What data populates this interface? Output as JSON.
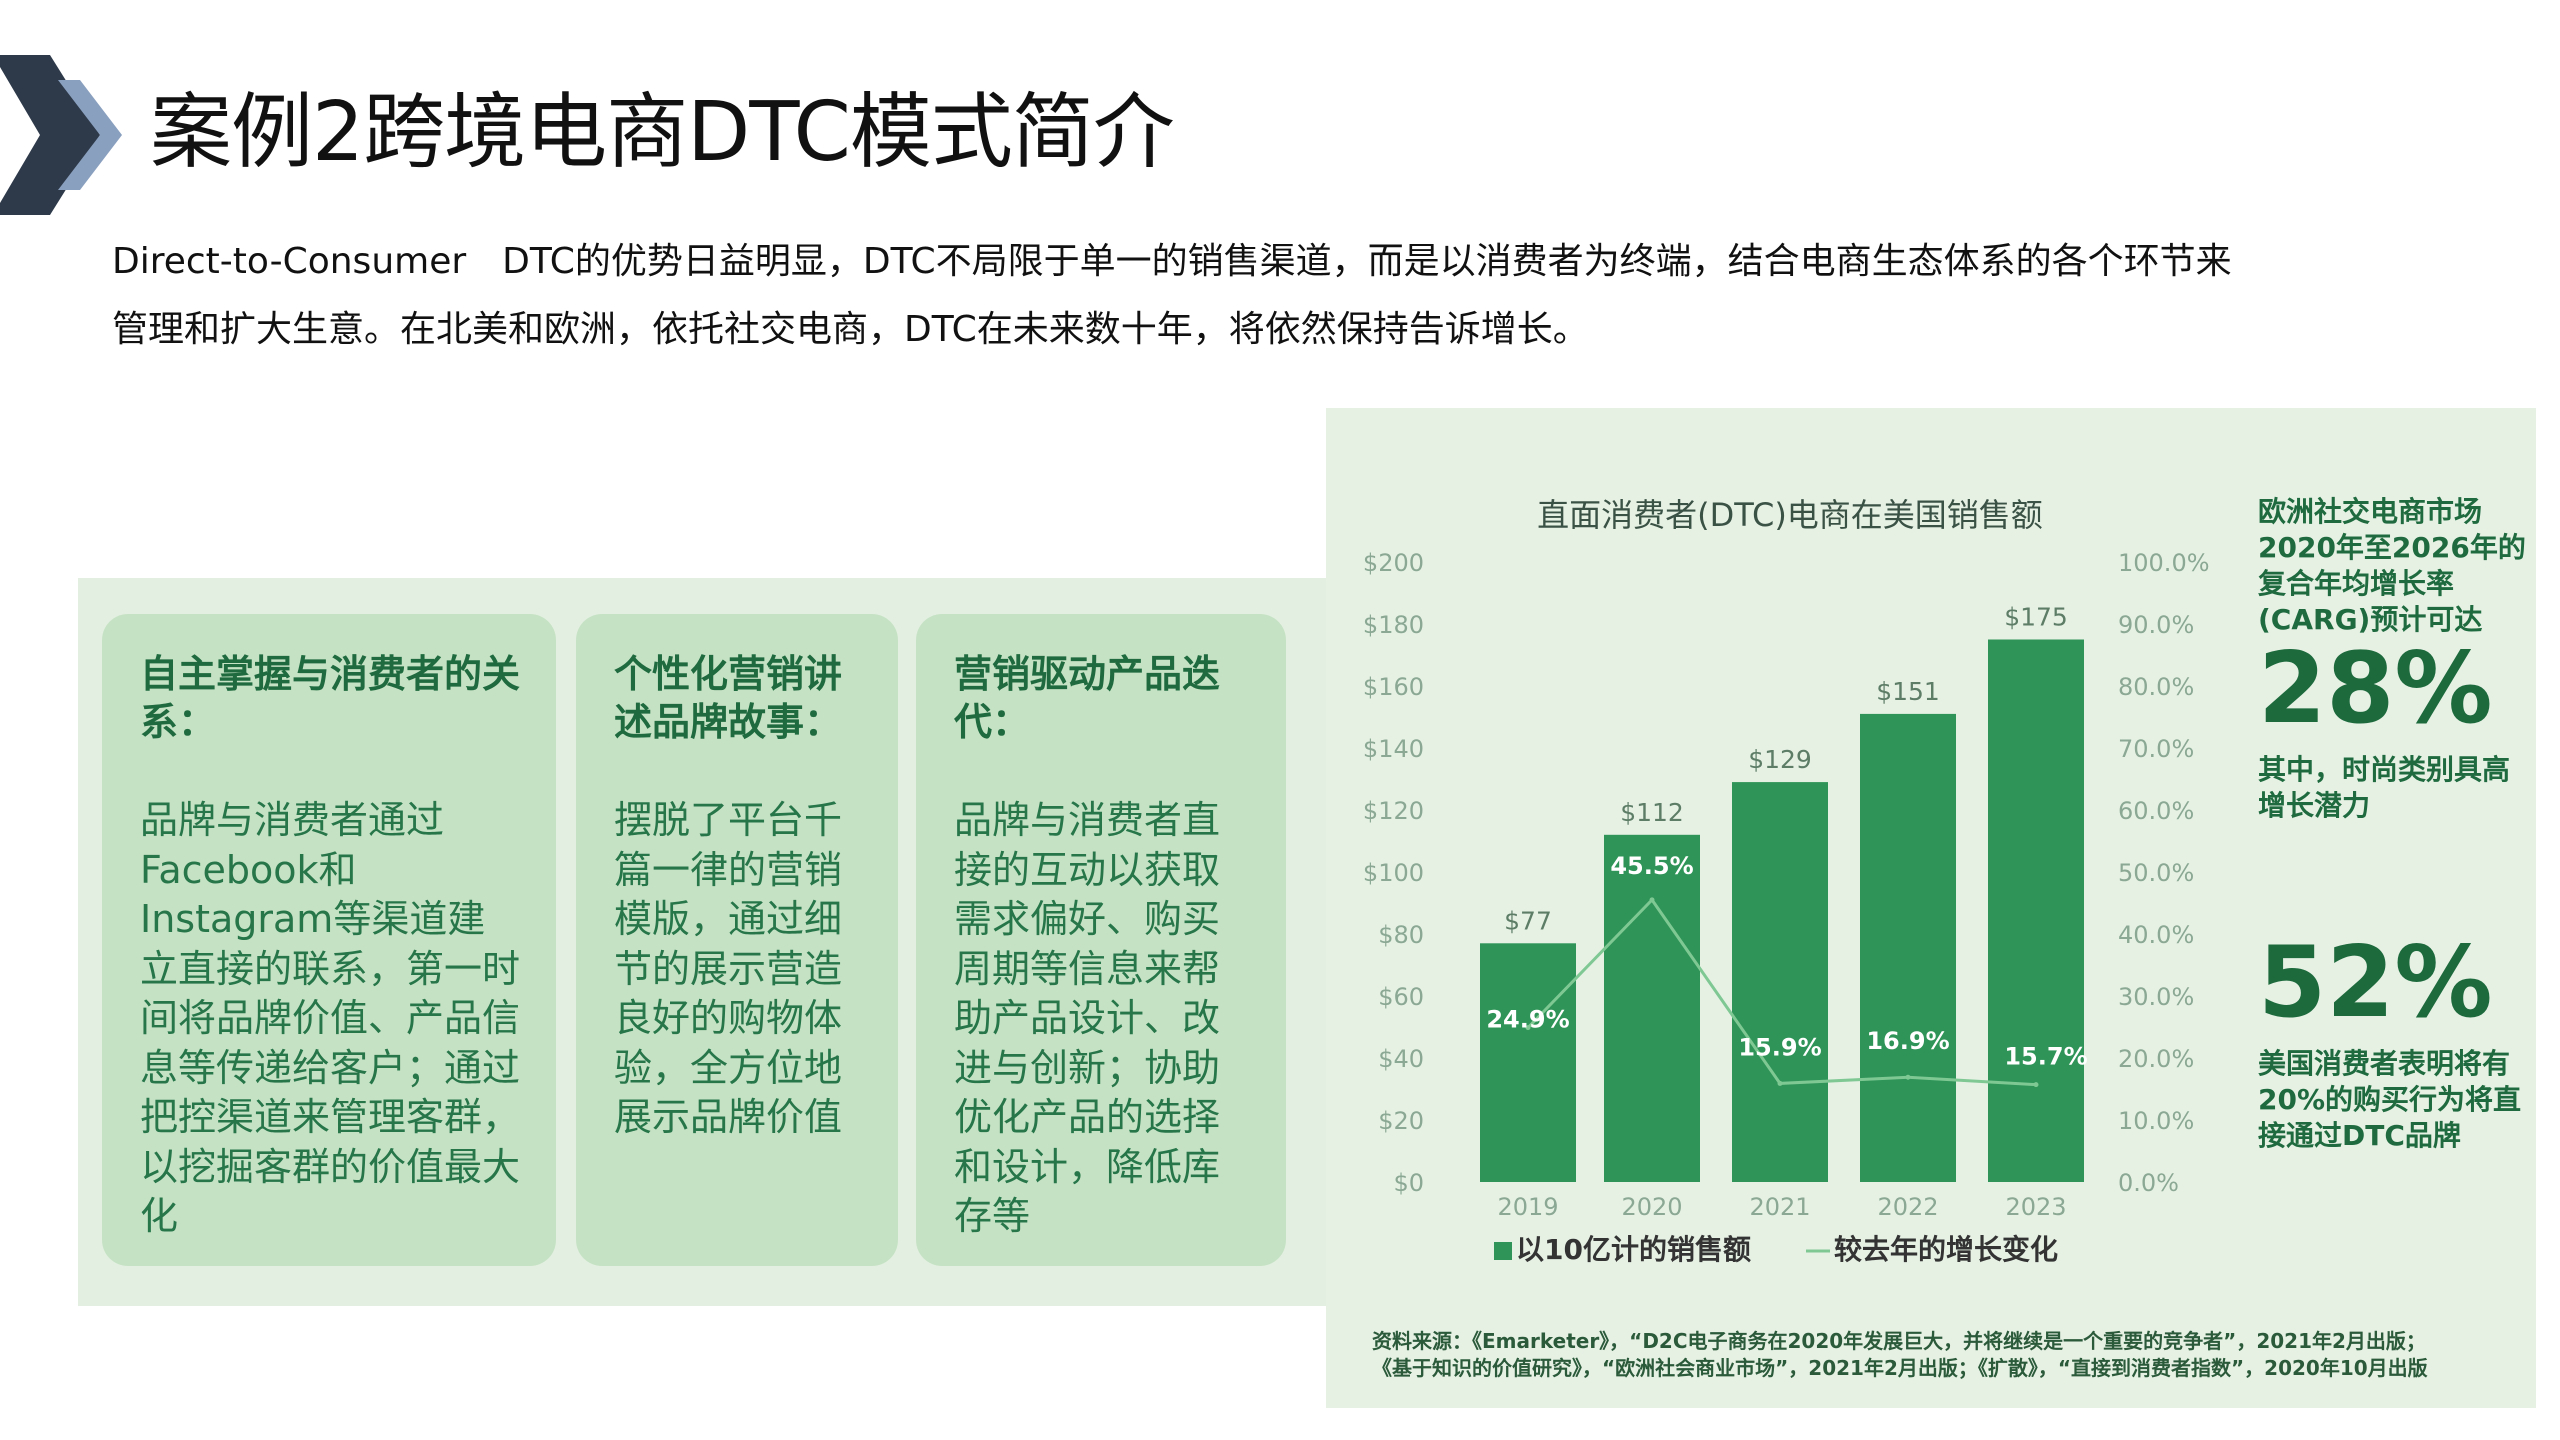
{
  "slide": {
    "title": "案例2跨境电商DTC模式简介",
    "intro_line1": "Direct-to-Consumer　DTC的优势日益明显，DTC不局限于单一的销售渠道，而是以消费者为终端，结合电商生态体系的各个环节来",
    "intro_line2": "管理和扩大生意。在北美和欧洲，依托社交电商，DTC在未来数十年，将依然保持告诉增长。"
  },
  "cards": [
    {
      "title": "自主掌握与消费者的关系：",
      "body": "品牌与消费者通过Facebook和Instagram等渠道建立直接的联系，第一时间将品牌价值、产品信息等传递给客户；通过把控渠道来管理客群，以挖掘客群的价值最大化"
    },
    {
      "title": "个性化营销讲述品牌故事：",
      "body": "摆脱了平台千篇一律的营销模版，通过细节的展示营造良好的购物体验，全方位地展示品牌价值"
    },
    {
      "title": "营销驱动产品迭代：",
      "body": "品牌与消费者直接的互动以获取需求偏好、购买周期等信息来帮助产品设计、改进与创新；协助优化产品的选择和设计，降低库存等"
    }
  ],
  "chart_data": {
    "type": "bar",
    "title": "直面消费者(DTC)电商在美国销售额",
    "categories": [
      "2019",
      "2020",
      "2021",
      "2022",
      "2023"
    ],
    "series": [
      {
        "name": "以10亿计的销售额",
        "type": "bar",
        "axis": "left",
        "values": [
          77,
          112,
          129,
          151,
          175
        ],
        "labels": [
          "$77",
          "$112",
          "$129",
          "$151",
          "$175"
        ]
      },
      {
        "name": "较去年的增长变化",
        "type": "line",
        "axis": "right",
        "values": [
          24.9,
          45.5,
          15.9,
          16.9,
          15.7
        ],
        "labels": [
          "24.9%",
          "45.5%",
          "15.9%",
          "16.9%",
          "15.7%"
        ]
      }
    ],
    "y_left": {
      "min": 0,
      "max": 200,
      "ticks": [
        "$0",
        "$20",
        "$40",
        "$60",
        "$80",
        "$100",
        "$120",
        "$140",
        "$160",
        "$180",
        "$200"
      ]
    },
    "y_right": {
      "min": 0,
      "max": 100,
      "ticks": [
        "0.0%",
        "10.0%",
        "20.0%",
        "30.0%",
        "40.0%",
        "50.0%",
        "60.0%",
        "70.0%",
        "80.0%",
        "90.0%",
        "100.0%"
      ]
    },
    "legend_position": "bottom",
    "grid": false,
    "colors": {
      "bar": "#2e9457",
      "bar_text": "#ffffff",
      "line": "#7fc894",
      "axis_text": "#8aa893",
      "title_text": "#3a5245"
    }
  },
  "side": {
    "stat1_caption": "欧洲社交电商市场2020年至2026年的复合年均增长率(CARG)预计可达",
    "stat1_value": "28%",
    "stat1_note": "其中，时尚类别具高增长潜力",
    "stat2_value": "52%",
    "stat2_note": "美国消费者表明将有20%的购买行为将直接通过DTC品牌"
  },
  "source": "资料来源：《Emarketer》，“D2C电子商务在2020年发展巨大，并将继续是一个重要的竞争者”，2021年2月出版；《基于知识的价值研究》，“欧洲社会商业市场”，2021年2月出版；《扩散》，“直接到消费者指数”，2020年10月出版",
  "theme": {
    "arrow_dark": "#2e3a4a",
    "arrow_light": "#8aa0bf",
    "panel_bg": "#e3f0e1",
    "card_bg": "#c6e2c5",
    "brand_green": "#1f6b3f"
  }
}
